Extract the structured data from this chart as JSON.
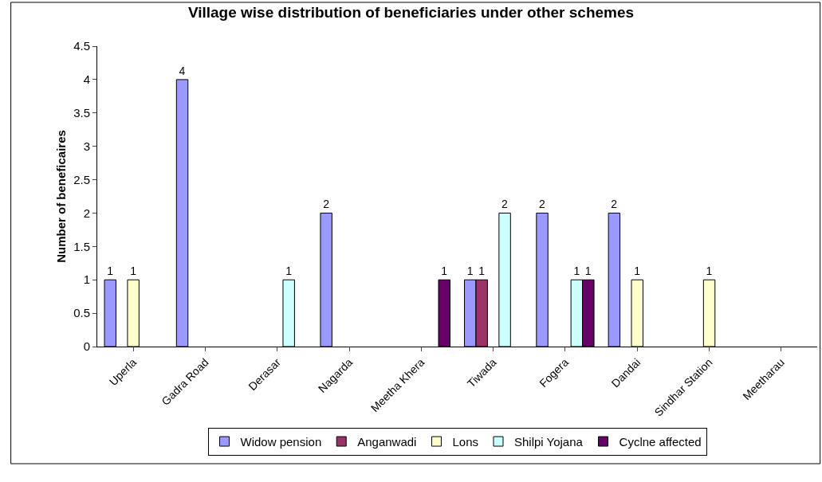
{
  "chart_data": {
    "type": "bar",
    "title": "Village wise distribution of beneficiaries under other schemes",
    "ylabel": "Number of beneficaires",
    "categories": [
      "Uperla",
      "Gadra Road",
      "Derasar",
      "Nagarda",
      "Meetha Khera",
      "Tiwada",
      "Fogera",
      "Dandai",
      "Sindhar Station",
      "Meetharau"
    ],
    "series": [
      {
        "name": "Widow pension",
        "color": "#9999ff",
        "values": [
          1,
          4,
          null,
          2,
          null,
          1,
          2,
          2,
          null,
          null
        ]
      },
      {
        "name": "Anganwadi",
        "color": "#993366",
        "values": [
          null,
          null,
          null,
          null,
          null,
          1,
          null,
          null,
          null,
          null
        ]
      },
      {
        "name": "Lons",
        "color": "#ffffcc",
        "values": [
          1,
          null,
          null,
          null,
          null,
          null,
          null,
          1,
          1,
          null
        ]
      },
      {
        "name": "Shilpi Yojana",
        "color": "#ccffff",
        "values": [
          null,
          null,
          1,
          null,
          null,
          2,
          1,
          null,
          null,
          null
        ]
      },
      {
        "name": "Cyclne affected",
        "color": "#660066",
        "values": [
          null,
          null,
          null,
          null,
          1,
          null,
          1,
          null,
          null,
          null
        ]
      }
    ],
    "ylim": [
      0,
      4.5
    ],
    "yticks": [
      0,
      0.5,
      1,
      1.5,
      2,
      2.5,
      3,
      3.5,
      4,
      4.5
    ],
    "grid": false,
    "legend": "bottom",
    "data_labels": true
  }
}
